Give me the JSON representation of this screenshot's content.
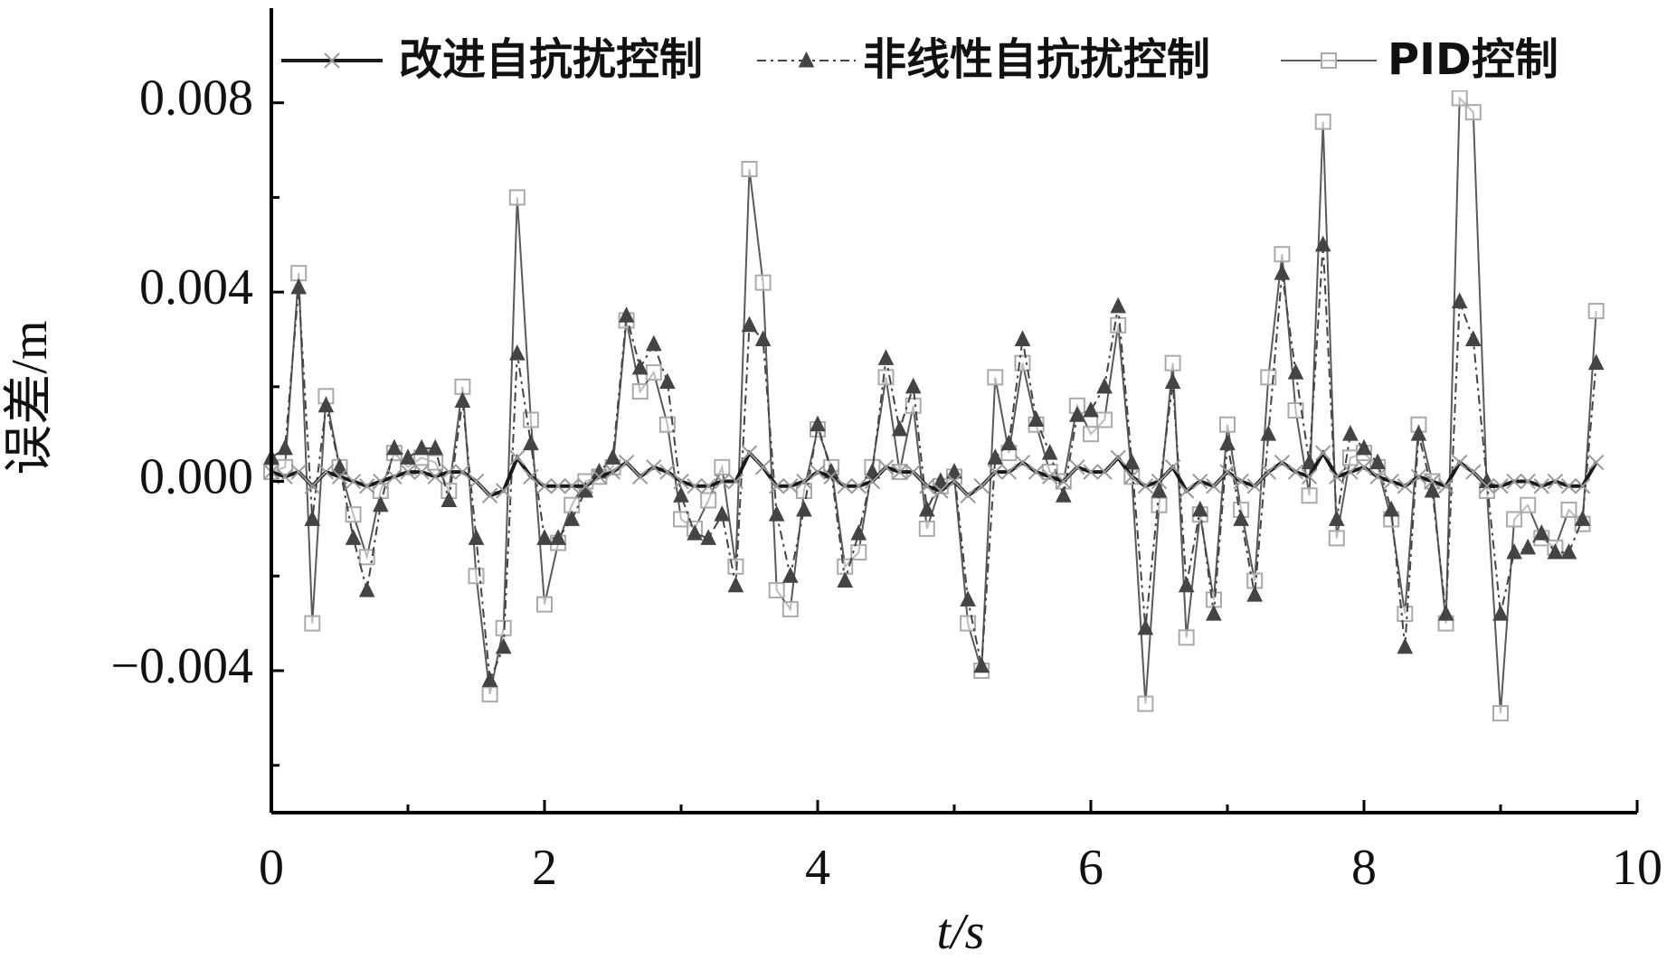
{
  "chart_data": {
    "type": "line",
    "xlabel": "t/s",
    "ylabel": "误差/m",
    "xlim": [
      0,
      10
    ],
    "xticks": [
      0,
      2,
      4,
      6,
      8,
      10
    ],
    "xminor_ticks": [
      1,
      3,
      5,
      7,
      9
    ],
    "ylim": [
      -0.007,
      0.01
    ],
    "yticks": [
      {
        "value": -0.004,
        "label": "−0.004"
      },
      {
        "value": 0,
        "label": "0.000"
      },
      0.004,
      0.008
    ],
    "yminor_ticks": [
      -0.006,
      -0.002,
      0.002,
      0.006
    ],
    "legend": "top",
    "x": [
      0,
      0.1,
      0.2,
      0.3,
      0.4,
      0.5,
      0.6,
      0.7,
      0.8,
      0.9,
      1,
      1.1,
      1.2,
      1.3,
      1.4,
      1.5,
      1.6,
      1.7,
      1.8,
      1.9,
      2,
      2.1,
      2.2,
      2.3,
      2.4,
      2.5,
      2.6,
      2.7,
      2.8,
      2.9,
      3,
      3.1,
      3.2,
      3.3,
      3.4,
      3.5,
      3.6,
      3.7,
      3.8,
      3.9,
      4,
      4.1,
      4.2,
      4.3,
      4.4,
      4.5,
      4.6,
      4.7,
      4.8,
      4.9,
      5,
      5.1,
      5.2,
      5.3,
      5.4,
      5.5,
      5.6,
      5.7,
      5.8,
      5.9,
      6,
      6.1,
      6.2,
      6.3,
      6.4,
      6.5,
      6.6,
      6.7,
      6.8,
      6.9,
      7,
      7.1,
      7.2,
      7.3,
      7.4,
      7.5,
      7.6,
      7.7,
      7.8,
      7.9,
      8,
      8.1,
      8.2,
      8.3,
      8.4,
      8.5,
      8.6,
      8.7,
      8.8,
      8.9,
      9,
      9.1,
      9.2,
      9.3,
      9.4,
      9.5,
      9.6,
      9.7
    ],
    "series": [
      {
        "name": "改进自抗扰控制",
        "color": "#1a1a1a",
        "marker": "x",
        "dash": "solid",
        "values": [
          0.0002,
          0.0001,
          0.0002,
          -0.0001,
          0.0002,
          0.0001,
          0.0,
          -0.0001,
          0.0,
          0.0001,
          0.0002,
          0.0002,
          0.0001,
          0.0002,
          0.0002,
          0.0,
          -0.0003,
          -0.0002,
          0.0005,
          0.0001,
          -0.0001,
          -0.0001,
          -0.0001,
          -0.0001,
          0.0001,
          0.0002,
          0.0004,
          0.0001,
          0.0003,
          0.0002,
          0.0,
          -0.0001,
          -0.0001,
          0.0,
          0.0,
          0.0006,
          0.0003,
          -0.0001,
          -0.0001,
          0.0,
          0.0002,
          0.0001,
          -0.0001,
          -0.0001,
          0.0,
          0.0003,
          0.0002,
          0.0002,
          -0.0001,
          -0.0002,
          0.0,
          -0.0003,
          -0.0001,
          0.0002,
          0.0002,
          0.0004,
          0.0002,
          0.0001,
          0.0,
          0.0003,
          0.0002,
          0.0002,
          0.0005,
          0.0001,
          -0.0001,
          0.0,
          0.0003,
          -0.0002,
          0.0,
          -0.0001,
          0.0002,
          0.0,
          -0.0001,
          0.0002,
          0.0004,
          0.0002,
          0.0001,
          0.0006,
          0.0001,
          0.0002,
          0.0003,
          0.0001,
          0.0,
          -0.0001,
          0.0001,
          0.0,
          -0.0001,
          0.0004,
          0.0002,
          -0.0001,
          -0.0001,
          0.0,
          0.0,
          -0.0001,
          0.0,
          -0.0001,
          -0.0001,
          0.0004
        ]
      },
      {
        "name": "非线性自抗扰控制",
        "color": "#444444",
        "marker": "triangle",
        "dash": "dashdot",
        "values": [
          0.0005,
          0.0007,
          0.0041,
          -0.0008,
          0.0016,
          0.0003,
          -0.0012,
          -0.0023,
          -0.0005,
          0.0007,
          0.0005,
          0.0007,
          0.0007,
          -0.0004,
          0.0017,
          -0.0012,
          -0.0042,
          -0.0035,
          0.0027,
          0.0008,
          -0.0012,
          -0.0012,
          -0.0008,
          -0.0002,
          0.0002,
          0.0005,
          0.0035,
          0.0024,
          0.0029,
          0.0021,
          -0.0003,
          -0.0011,
          -0.0012,
          -0.0007,
          -0.0022,
          0.0033,
          0.003,
          -0.0007,
          -0.002,
          -0.0006,
          0.0012,
          0.0002,
          -0.0021,
          -0.0011,
          0.0002,
          0.0026,
          0.0011,
          0.002,
          -0.0006,
          0.0,
          0.0002,
          -0.0025,
          -0.0039,
          0.0005,
          0.0008,
          0.003,
          0.0013,
          0.0006,
          -0.0003,
          0.0014,
          0.0015,
          0.002,
          0.0037,
          0.0004,
          -0.0031,
          -0.0002,
          0.0021,
          -0.0022,
          -0.0006,
          -0.0028,
          0.0008,
          -0.0008,
          -0.0024,
          0.001,
          0.0044,
          0.0023,
          0.0004,
          0.005,
          -0.0008,
          0.001,
          0.0007,
          0.0004,
          -0.0006,
          -0.0035,
          0.001,
          -0.0002,
          -0.0028,
          0.0038,
          0.003,
          0.0,
          -0.0028,
          -0.0015,
          -0.0014,
          -0.0011,
          -0.0015,
          -0.0015,
          -0.0008,
          0.0025
        ]
      },
      {
        "name": "PID控制",
        "color": "#5a5a5a",
        "marker": "square",
        "dash": "solid",
        "values": [
          0.0002,
          0.0003,
          0.0044,
          -0.003,
          0.0018,
          0.0003,
          -0.0007,
          -0.0016,
          -0.0002,
          0.0006,
          0.0003,
          0.0005,
          0.0004,
          -0.0002,
          0.002,
          -0.002,
          -0.0045,
          -0.0031,
          0.006,
          0.0013,
          -0.0026,
          -0.0013,
          -0.0005,
          0.0,
          0.0001,
          0.0003,
          0.0034,
          0.0019,
          0.0023,
          0.0012,
          -0.0008,
          -0.001,
          -0.0004,
          0.0003,
          -0.0018,
          0.0066,
          0.0042,
          -0.0023,
          -0.0027,
          -0.0002,
          0.0011,
          0.0003,
          -0.0018,
          -0.0015,
          0.0003,
          0.0022,
          0.0002,
          0.0016,
          -0.001,
          -0.0001,
          0.0001,
          -0.003,
          -0.004,
          0.0022,
          0.0006,
          0.0025,
          0.0012,
          0.0002,
          0.0,
          0.0016,
          0.001,
          0.0013,
          0.0033,
          0.0001,
          -0.0047,
          -0.0005,
          0.0025,
          -0.0033,
          -0.0007,
          -0.0025,
          0.0012,
          -0.0006,
          -0.0021,
          0.0022,
          0.0048,
          0.0015,
          -0.0003,
          0.0076,
          -0.0012,
          0.0005,
          0.0006,
          0.0003,
          -0.0008,
          -0.0028,
          0.0012,
          0.0,
          -0.003,
          0.0081,
          0.0078,
          -0.0002,
          -0.0049,
          -0.0008,
          -0.0005,
          -0.0012,
          -0.0014,
          -0.0006,
          -0.0009,
          0.0036
        ]
      }
    ]
  }
}
